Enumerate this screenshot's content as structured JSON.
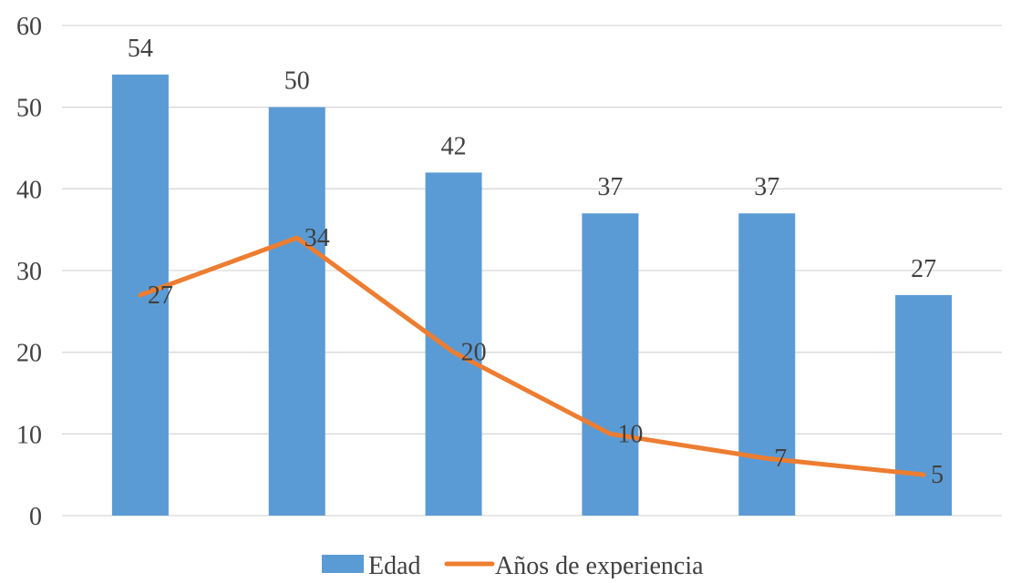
{
  "chart_data": {
    "type": "bar",
    "categories": [
      "",
      "",
      "",
      "",
      "",
      ""
    ],
    "series": [
      {
        "name": "Edad",
        "type": "bar",
        "values": [
          54,
          50,
          42,
          37,
          37,
          27
        ],
        "color": "#5B9BD5"
      },
      {
        "name": "Años de experiencia",
        "type": "line",
        "values": [
          27,
          34,
          20,
          10,
          7,
          5
        ],
        "color": "#ED7D31"
      }
    ],
    "ylim": [
      0,
      60
    ],
    "yticks": [
      "0",
      "10",
      "20",
      "30",
      "40",
      "50",
      "60"
    ],
    "grid": true,
    "gridColor": "#D9D9D9",
    "legend": "bottom",
    "title": "",
    "xlabel": "",
    "ylabel": ""
  }
}
